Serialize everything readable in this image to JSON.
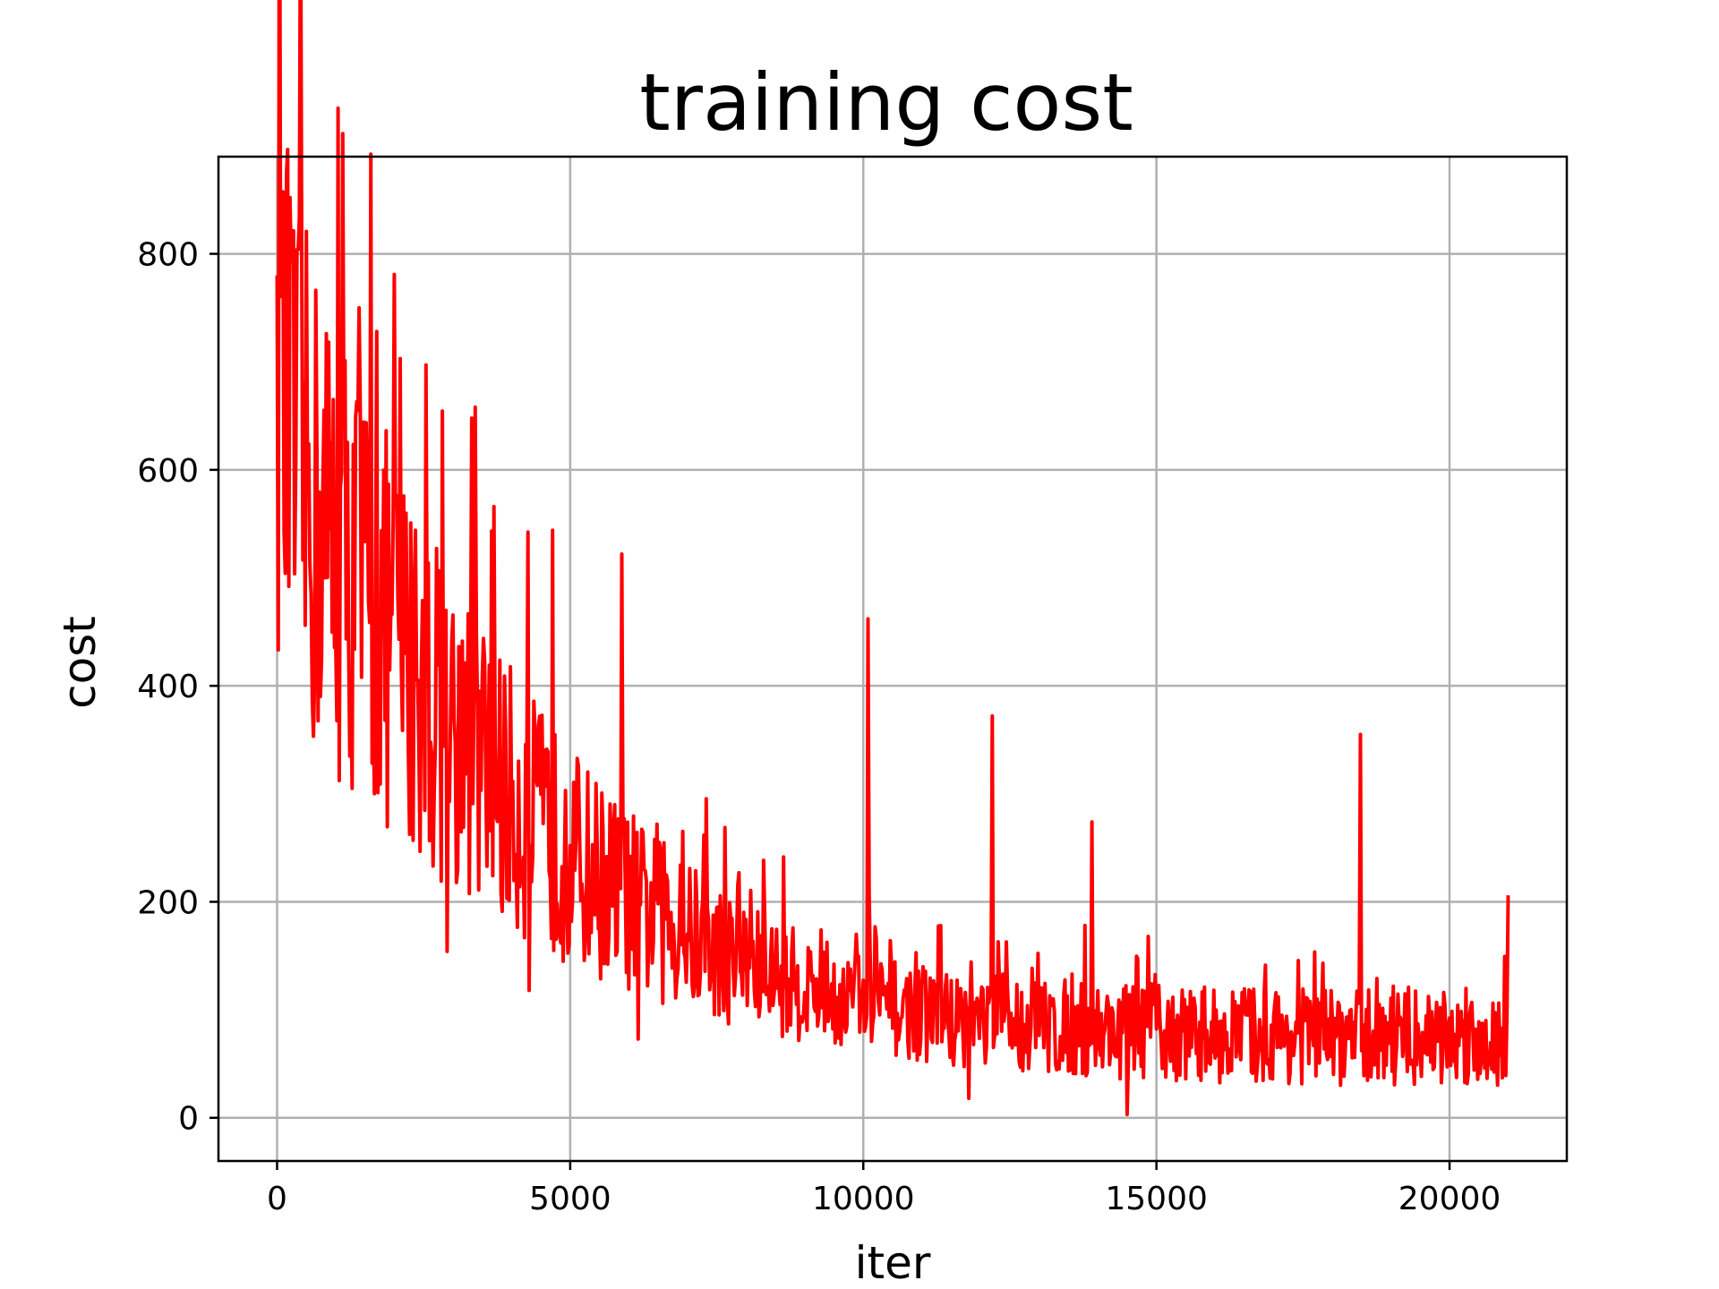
{
  "chart_data": {
    "type": "line",
    "title": "training cost",
    "xlabel": "iter",
    "ylabel": "cost",
    "xlim": [
      -1000,
      22000
    ],
    "ylim": [
      -40,
      890
    ],
    "xticks": [
      0,
      5000,
      10000,
      15000,
      20000
    ],
    "yticks": [
      0,
      200,
      400,
      600,
      800
    ],
    "grid": true,
    "series": [
      {
        "color": "#ff0000",
        "x": [
          0,
          210,
          420,
          640,
          850,
          1060,
          1270,
          1480,
          1700,
          1910,
          2120,
          2330,
          2540,
          2760,
          2970,
          3180,
          3390,
          3600,
          3820,
          4030,
          4240,
          4450,
          4660,
          4880,
          5090,
          5300,
          5510,
          5720,
          5940,
          6150,
          6360,
          6570,
          6780,
          7000,
          7210,
          7420,
          7630,
          7840,
          8060,
          8270,
          8480,
          8690,
          8900,
          9120,
          9330,
          9540,
          9750,
          9960,
          10180,
          10390,
          10600,
          10810,
          11020,
          11240,
          11450,
          11660,
          11870,
          12080,
          12300,
          12510,
          12720,
          12930,
          13140,
          13360,
          13570,
          13780,
          13990,
          14200,
          14420,
          14630,
          14840,
          15050,
          15260,
          15480,
          15690,
          15900,
          16110,
          16320,
          16540,
          16750,
          16960,
          17170,
          17380,
          17600,
          17810,
          18020,
          18230,
          18440,
          18660,
          18870,
          19080,
          19290,
          19500,
          19720,
          19930,
          20140,
          20350,
          20560,
          20780,
          21000
        ],
        "y": [
          660,
          610,
          590,
          560,
          545,
          525,
          505,
          485,
          465,
          445,
          428,
          410,
          393,
          378,
          362,
          347,
          333,
          319,
          306,
          293,
          281,
          270,
          259,
          249,
          239,
          230,
          221,
          212,
          204,
          196,
          189,
          182,
          175,
          168,
          162,
          156,
          150,
          145,
          140,
          135,
          131,
          127,
          123,
          119,
          116,
          113,
          110,
          107,
          104,
          102,
          100,
          98,
          96,
          94,
          92,
          91,
          90,
          89,
          88,
          87,
          86,
          85,
          84,
          83,
          82,
          82,
          81,
          81,
          80,
          80,
          79,
          79,
          79,
          78,
          78,
          78,
          77,
          77,
          77,
          77,
          76,
          76,
          76,
          76,
          76,
          75,
          75,
          75,
          75,
          75,
          75,
          74,
          74,
          74,
          74,
          74,
          74,
          74,
          74,
          74
        ],
        "spikes": [
          {
            "x": 0,
            "y": 780
          },
          {
            "x": 220,
            "y": 852
          },
          {
            "x": 360,
            "y": 804
          },
          {
            "x": 1400,
            "y": 750
          },
          {
            "x": 1700,
            "y": 728
          },
          {
            "x": 2100,
            "y": 703
          },
          {
            "x": 2540,
            "y": 697
          },
          {
            "x": 3380,
            "y": 658
          },
          {
            "x": 3700,
            "y": 566
          },
          {
            "x": 4700,
            "y": 544
          },
          {
            "x": 5880,
            "y": 522
          },
          {
            "x": 10080,
            "y": 462
          },
          {
            "x": 12200,
            "y": 372
          },
          {
            "x": 13900,
            "y": 274
          },
          {
            "x": 18480,
            "y": 355
          },
          {
            "x": 21000,
            "y": 206
          },
          {
            "x": 2900,
            "y": 154
          },
          {
            "x": 4300,
            "y": 118
          },
          {
            "x": 6150,
            "y": 73
          },
          {
            "x": 11800,
            "y": 18
          },
          {
            "x": 14500,
            "y": 3
          }
        ]
      }
    ]
  }
}
